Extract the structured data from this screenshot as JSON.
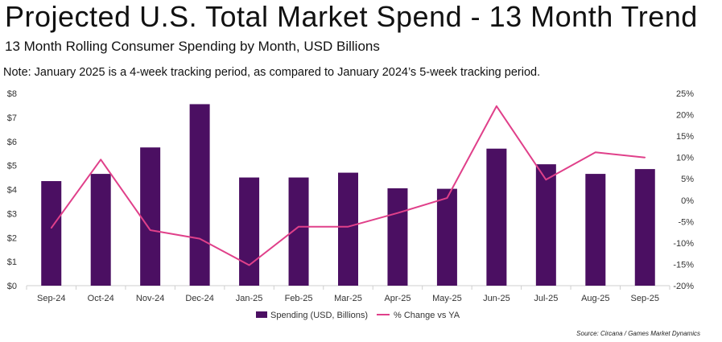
{
  "header": {
    "title": "Projected U.S. Total Market Spend - 13 Month Trend",
    "subtitle": "13 Month Rolling Consumer Spending by Month, USD Billions",
    "note": "Note: January 2025 is a 4-week tracking period, as compared to January 2024’s 5-week tracking period.",
    "source": "Source: Circana / Games Market Dynamics"
  },
  "colors": {
    "bar": "#4b0f62",
    "line": "#e0408a",
    "axis": "#cfcfcf"
  },
  "chart_data": {
    "type": "bar",
    "categories": [
      "Sep-24",
      "Oct-24",
      "Nov-24",
      "Dec-24",
      "Jan-25",
      "Feb-25",
      "Mar-25",
      "Apr-25",
      "May-25",
      "Jun-25",
      "Jul-25",
      "Aug-25",
      "Sep-25"
    ],
    "series": [
      {
        "name": "Spending (USD, Billions)",
        "type": "bar",
        "axis": "left",
        "values": [
          4.35,
          4.65,
          5.75,
          7.55,
          4.5,
          4.5,
          4.7,
          4.05,
          4.03,
          5.7,
          5.05,
          4.65,
          4.85
        ]
      },
      {
        "name": "% Change vs YA",
        "type": "line",
        "axis": "right",
        "values": [
          -6.5,
          9.5,
          -7.0,
          -9.0,
          -15.2,
          -6.2,
          -6.2,
          -3.0,
          0.5,
          22.0,
          4.8,
          11.2,
          10.0
        ]
      }
    ],
    "y_left": {
      "ylim": [
        0,
        8
      ],
      "ticks": [
        "$0",
        "$1",
        "$2",
        "$3",
        "$4",
        "$5",
        "$6",
        "$7",
        "$8"
      ]
    },
    "y_right": {
      "ylim": [
        -20,
        25
      ],
      "ticks": [
        "-20%",
        "-15%",
        "-10%",
        "-5%",
        "0%",
        "5%",
        "10%",
        "15%",
        "20%",
        "25%"
      ]
    },
    "legend": {
      "position": "bottom",
      "entries": [
        "Spending (USD, Billions)",
        "% Change vs YA"
      ]
    }
  }
}
